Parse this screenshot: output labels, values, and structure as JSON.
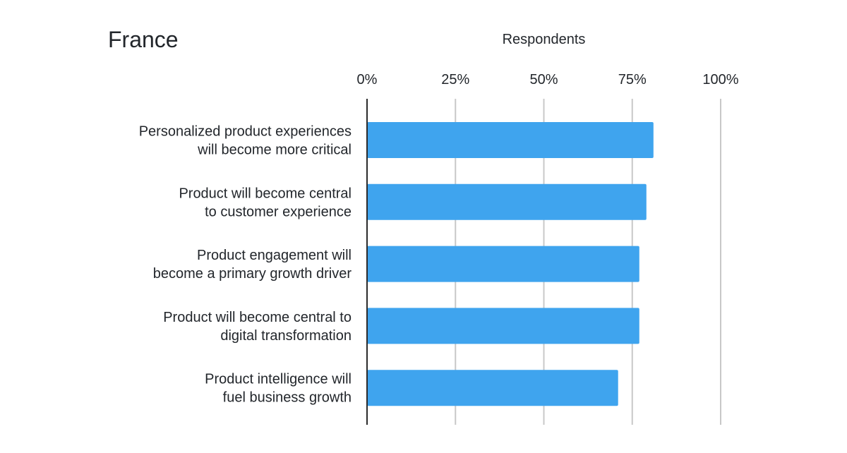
{
  "chart_data": {
    "type": "bar",
    "orientation": "horizontal",
    "title": "France",
    "xlabel": "Respondents",
    "ylabel": "",
    "xlim": [
      0,
      100
    ],
    "ticks": [
      0,
      25,
      50,
      75,
      100
    ],
    "tick_labels": [
      "0%",
      "25%",
      "50%",
      "75%",
      "100%"
    ],
    "grid": true,
    "legend": "none",
    "bar_color": "#3fa4ee",
    "categories": [
      [
        "Personalized product experiences",
        "will become more critical"
      ],
      [
        "Product will become central",
        "to customer experience"
      ],
      [
        "Product engagement will",
        "become a primary growth driver"
      ],
      [
        "Product will become central to",
        "digital transformation"
      ],
      [
        "Product intelligence will",
        "fuel business growth"
      ]
    ],
    "values": [
      81,
      79,
      77,
      77,
      71
    ]
  }
}
